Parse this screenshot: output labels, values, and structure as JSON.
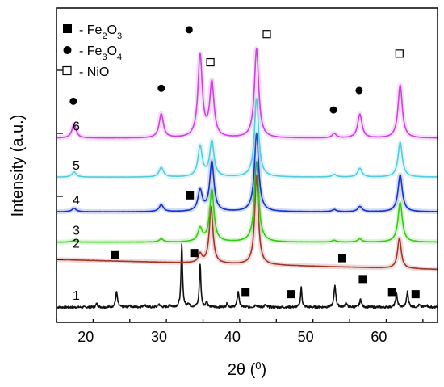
{
  "chart_data": {
    "type": "line",
    "title": "",
    "xlabel": "2θ (°)",
    "xlabel_main": "2θ",
    "xlabel_unit": "0",
    "ylabel": "Intensity (a.u.)",
    "xlim": [
      16,
      68
    ],
    "x_ticks": [
      20,
      30,
      40,
      50,
      60
    ],
    "legend": [
      {
        "marker": "square-filled",
        "prefix": "- Fe",
        "sub1": "2",
        "mid": "O",
        "sub2": "3",
        "label": "- Fe2O3"
      },
      {
        "marker": "circle-filled",
        "prefix": "- Fe",
        "sub1": "3",
        "mid": "O",
        "sub2": "4",
        "label": "- Fe3O4"
      },
      {
        "marker": "square-open",
        "prefix": "- NiO",
        "sub1": "",
        "mid": "",
        "sub2": "",
        "label": "- NiO"
      }
    ],
    "legend_position": "top-left",
    "series": [
      {
        "name": "1",
        "color": "#111111",
        "offset": 0.0,
        "peaks": [
          [
            21.5,
            0.08,
            0.15
          ],
          [
            24.2,
            0.35,
            0.15
          ],
          [
            26.0,
            0.05,
            0.15
          ],
          [
            28.0,
            0.06,
            0.2
          ],
          [
            30.0,
            0.07,
            0.15
          ],
          [
            31.5,
            0.05,
            0.15
          ],
          [
            33.1,
            1.45,
            0.12
          ],
          [
            34.0,
            0.08,
            0.15
          ],
          [
            35.6,
            1.0,
            0.12
          ],
          [
            36.5,
            0.12,
            0.15
          ],
          [
            39.3,
            0.08,
            0.15
          ],
          [
            40.8,
            0.35,
            0.15
          ],
          [
            43.2,
            0.06,
            0.15
          ],
          [
            44.5,
            0.05,
            0.15
          ],
          [
            49.4,
            0.45,
            0.12
          ],
          [
            54.0,
            0.5,
            0.15
          ],
          [
            55.5,
            0.1,
            0.15
          ],
          [
            57.5,
            0.18,
            0.15
          ],
          [
            62.4,
            0.3,
            0.15
          ],
          [
            63.9,
            0.35,
            0.15
          ],
          [
            65.5,
            0.05,
            0.15
          ],
          [
            66.5,
            0.05,
            0.15
          ]
        ]
      },
      {
        "name": "2",
        "color": "#a0362a",
        "offset": 0.95,
        "baseline_slope": [
          0.15,
          -0.08
        ],
        "peaks": [
          [
            35.6,
            0.2,
            0.3
          ],
          [
            37.1,
            1.3,
            0.3
          ],
          [
            43.3,
            2.05,
            0.3
          ],
          [
            62.8,
            0.7,
            0.3
          ]
        ]
      },
      {
        "name": "3",
        "color": "#33cc11",
        "offset": 1.5,
        "peaks": [
          [
            18.4,
            0.04,
            0.35
          ],
          [
            30.3,
            0.07,
            0.35
          ],
          [
            35.6,
            0.3,
            0.35
          ],
          [
            37.2,
            1.2,
            0.35
          ],
          [
            43.3,
            1.85,
            0.35
          ],
          [
            53.9,
            0.04,
            0.35
          ],
          [
            57.4,
            0.07,
            0.35
          ],
          [
            62.9,
            0.92,
            0.35
          ]
        ]
      },
      {
        "name": "4",
        "color": "#1133cc",
        "offset": 2.2,
        "peaks": [
          [
            18.4,
            0.08,
            0.35
          ],
          [
            30.3,
            0.16,
            0.35
          ],
          [
            35.6,
            0.48,
            0.35
          ],
          [
            37.2,
            1.15,
            0.35
          ],
          [
            43.3,
            1.8,
            0.35
          ],
          [
            53.9,
            0.05,
            0.35
          ],
          [
            57.4,
            0.12,
            0.35
          ],
          [
            62.9,
            0.85,
            0.35
          ]
        ]
      },
      {
        "name": "5",
        "color": "#55ccdd",
        "offset": 3.0,
        "peaks": [
          [
            18.4,
            0.12,
            0.35
          ],
          [
            30.3,
            0.22,
            0.35
          ],
          [
            35.6,
            0.7,
            0.35
          ],
          [
            37.2,
            0.82,
            0.35
          ],
          [
            43.3,
            1.8,
            0.35
          ],
          [
            53.9,
            0.06,
            0.35
          ],
          [
            57.4,
            0.2,
            0.35
          ],
          [
            62.9,
            0.8,
            0.35
          ]
        ]
      },
      {
        "name": "6",
        "color": "#cc44dd",
        "offset": 3.9,
        "peaks": [
          [
            18.4,
            0.32,
            0.35
          ],
          [
            30.3,
            0.55,
            0.35
          ],
          [
            35.6,
            1.9,
            0.35
          ],
          [
            37.2,
            1.25,
            0.35
          ],
          [
            43.3,
            2.05,
            0.35
          ],
          [
            53.9,
            0.1,
            0.35
          ],
          [
            57.4,
            0.55,
            0.35
          ],
          [
            62.9,
            1.22,
            0.35
          ]
        ]
      }
    ],
    "markers": [
      {
        "type": "square-filled",
        "x": 24.0,
        "y": 1.2
      },
      {
        "type": "square-filled",
        "x": 34.2,
        "y": 2.58
      },
      {
        "type": "square-filled",
        "x": 34.8,
        "y": 1.25
      },
      {
        "type": "square-filled",
        "x": 41.8,
        "y": 0.35
      },
      {
        "type": "square-filled",
        "x": 48.0,
        "y": 0.3
      },
      {
        "type": "square-filled",
        "x": 55.0,
        "y": 1.13
      },
      {
        "type": "square-filled",
        "x": 57.8,
        "y": 0.65
      },
      {
        "type": "square-filled",
        "x": 61.8,
        "y": 0.35
      },
      {
        "type": "square-filled",
        "x": 65.0,
        "y": 0.3
      },
      {
        "type": "circle-filled",
        "x": 18.3,
        "y": 4.75
      },
      {
        "type": "circle-filled",
        "x": 30.3,
        "y": 5.05
      },
      {
        "type": "circle-filled",
        "x": 34.1,
        "y": 6.4
      },
      {
        "type": "circle-filled",
        "x": 53.8,
        "y": 4.55
      },
      {
        "type": "circle-filled",
        "x": 57.3,
        "y": 5.0
      },
      {
        "type": "square-open",
        "x": 37.0,
        "y": 5.65
      },
      {
        "type": "square-open",
        "x": 44.7,
        "y": 6.3
      },
      {
        "type": "square-open",
        "x": 62.8,
        "y": 5.85
      }
    ]
  }
}
